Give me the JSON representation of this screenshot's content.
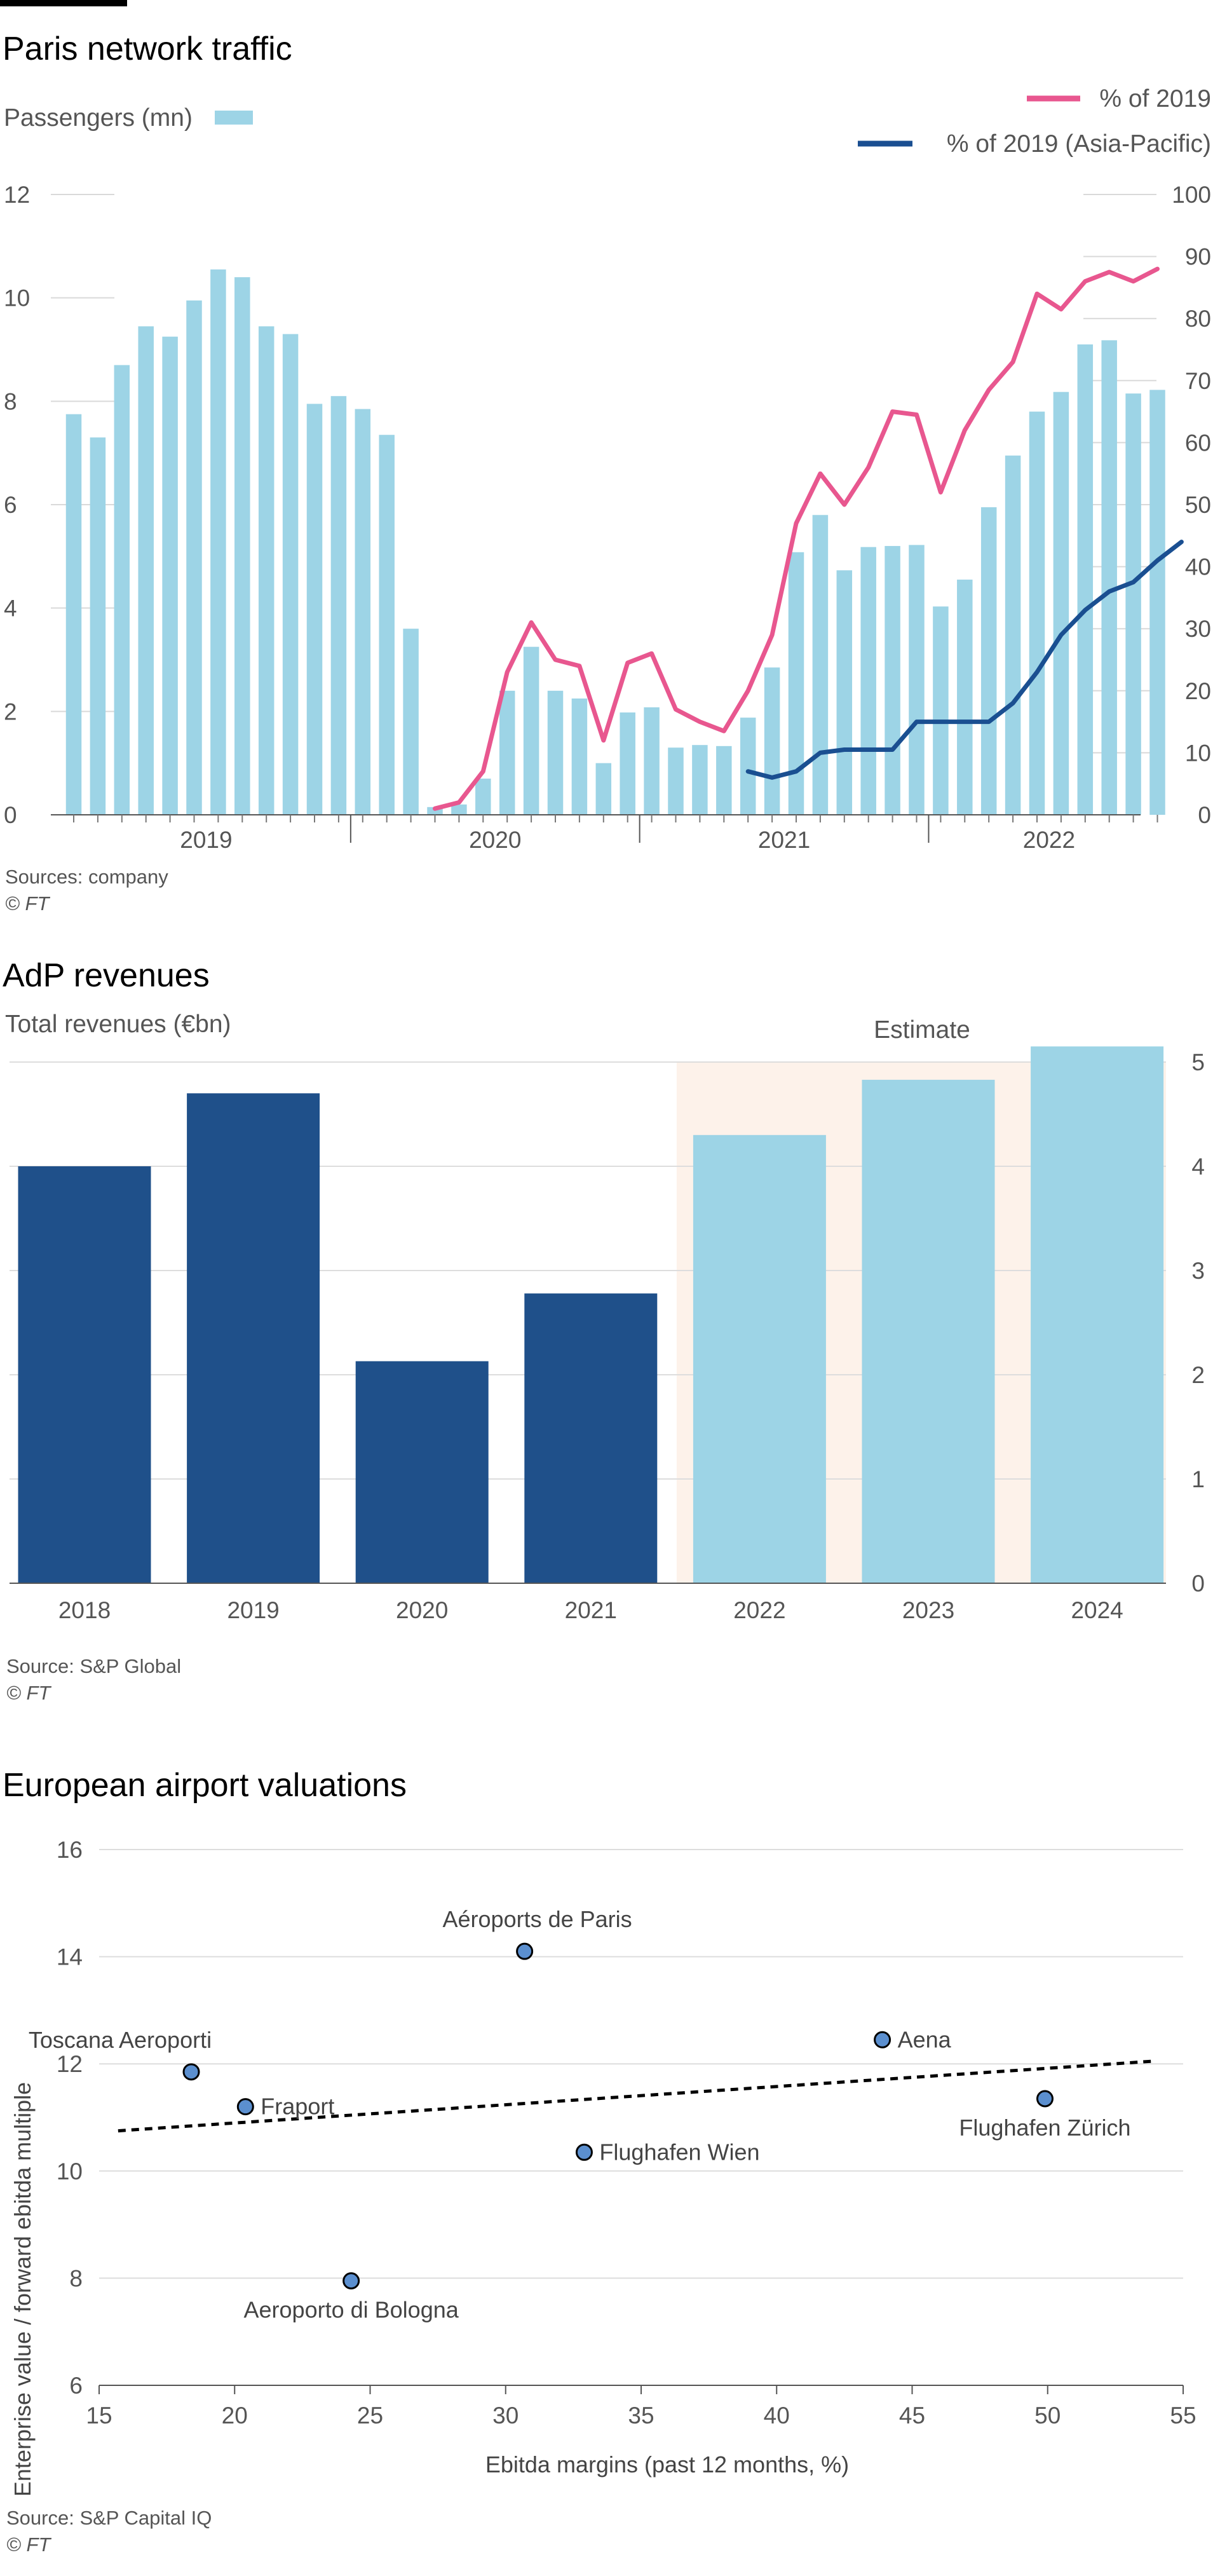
{
  "brand_colors": {
    "light_blue": "#9dd4e6",
    "dark_blue": "#1f508a",
    "pink": "#e8578f",
    "line_blue": "#1a4f91",
    "estimate_bg": "#fdf2ea"
  },
  "chart_data": [
    {
      "type": "bar+line",
      "title": "Paris network traffic",
      "bar_label": "Passengers (mn)",
      "bar_ylim": [
        0,
        12
      ],
      "bar_yticks": [
        0,
        2,
        4,
        6,
        8,
        10,
        12
      ],
      "line_ylim": [
        0,
        100
      ],
      "line_yticks": [
        0,
        10,
        20,
        30,
        40,
        50,
        60,
        70,
        80,
        90,
        100
      ],
      "year_labels": [
        "2019",
        "2020",
        "2021",
        "2022"
      ],
      "legend": [
        {
          "name": "% of 2019",
          "color": "#e8578f"
        },
        {
          "name": "% of 2019 (Asia-Pacific)",
          "color": "#1a4f91"
        }
      ],
      "bar_values": [
        7.75,
        7.3,
        8.7,
        9.45,
        9.25,
        9.95,
        10.55,
        10.4,
        9.45,
        9.3,
        7.95,
        8.1,
        7.85,
        7.35,
        3.6,
        0.15,
        0.2,
        0.7,
        2.4,
        3.25,
        2.4,
        2.25,
        1.0,
        1.98,
        2.08,
        1.3,
        1.35,
        1.33,
        1.88,
        2.85,
        5.08,
        5.8,
        4.73,
        5.18,
        5.2,
        5.22,
        4.03,
        4.55,
        5.95,
        6.95,
        7.8,
        8.18,
        9.1,
        9.18,
        8.15,
        8.22
      ],
      "series": [
        {
          "name": "% of 2019",
          "start_index": 15,
          "values": [
            1,
            2,
            7,
            23,
            31,
            25,
            24,
            12,
            24.5,
            26,
            17,
            15,
            13.5,
            20,
            29,
            47,
            55,
            50,
            56,
            65,
            64.5,
            52,
            62,
            68.5,
            73,
            84,
            81.5,
            86,
            87.5,
            86,
            88
          ]
        },
        {
          "name": "% of 2019 (Asia-Pacific)",
          "start_index": 28,
          "values": [
            7,
            6,
            7,
            10,
            10.5,
            10.5,
            10.5,
            15,
            15,
            15,
            15,
            18,
            23,
            29,
            33,
            36,
            37.5,
            41,
            44
          ]
        }
      ],
      "source": "Sources: company",
      "credit": "© FT"
    },
    {
      "type": "bar",
      "title": "AdP revenues",
      "subtitle": "Total revenues (€bn)",
      "annotation": "Estimate",
      "categories": [
        "2018",
        "2019",
        "2020",
        "2021",
        "2022",
        "2023",
        "2024"
      ],
      "values": [
        4.0,
        4.7,
        2.13,
        2.78,
        4.3,
        4.83,
        5.15
      ],
      "estimate_from_index": 4,
      "ylim": [
        0,
        5
      ],
      "yticks": [
        0,
        1,
        2,
        3,
        4,
        5
      ],
      "source": "Source: S&P Global",
      "credit": "© FT"
    },
    {
      "type": "scatter",
      "title": "European airport valuations",
      "xlabel": "Ebitda margins (past 12 months, %)",
      "ylabel": "Enterprise value / forward ebitda multiple",
      "xlim": [
        15,
        55
      ],
      "ylim": [
        6,
        16
      ],
      "xticks": [
        15,
        20,
        25,
        30,
        35,
        40,
        45,
        50,
        55
      ],
      "yticks": [
        6,
        8,
        10,
        12,
        14,
        16
      ],
      "points": [
        {
          "label": "Aéroports de Paris",
          "x": 30.7,
          "y": 14.1,
          "anchor": "above"
        },
        {
          "label": "Toscana Aeroporti",
          "x": 18.4,
          "y": 11.85,
          "anchor": "above"
        },
        {
          "label": "Fraport",
          "x": 20.4,
          "y": 11.2,
          "anchor": "right"
        },
        {
          "label": "Aena",
          "x": 43.9,
          "y": 12.45,
          "anchor": "right"
        },
        {
          "label": "Flughafen Zürich",
          "x": 49.9,
          "y": 11.35,
          "anchor": "below"
        },
        {
          "label": "Flughafen Wien",
          "x": 32.9,
          "y": 10.35,
          "anchor": "right"
        },
        {
          "label": "Aeroporto di Bologna",
          "x": 24.3,
          "y": 7.95,
          "anchor": "below"
        }
      ],
      "trendline": {
        "x": [
          15.7,
          53.9
        ],
        "y": [
          10.75,
          12.05
        ]
      },
      "source": "Source: S&P Capital IQ",
      "credit": "© FT"
    }
  ]
}
